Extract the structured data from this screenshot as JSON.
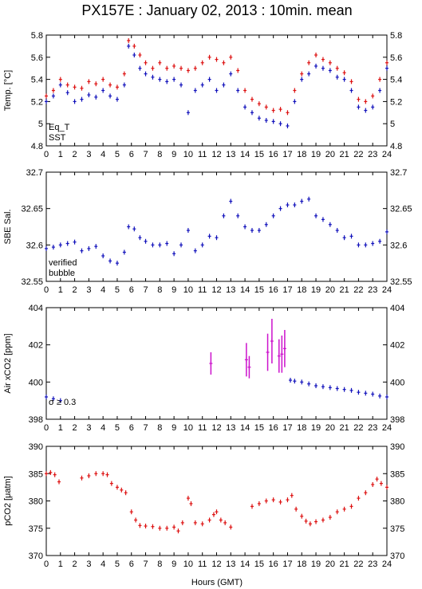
{
  "title": "PX157E : January 02, 2013 : 10min. mean",
  "xlabel": "Hours (GMT)",
  "x_ticks": [
    "0",
    "1",
    "2",
    "3",
    "4",
    "5",
    "6",
    "7",
    "8",
    "9",
    "10",
    "11",
    "12",
    "13",
    "14",
    "15",
    "16",
    "17",
    "18",
    "19",
    "20",
    "21",
    "22",
    "23",
    "24"
  ],
  "colors": {
    "red": "#dd1111",
    "blue": "#1111bb",
    "magenta": "#cc11cc"
  },
  "chart_data": [
    {
      "type": "scatter",
      "ylabel": "Temp. [°C]",
      "ylim": [
        4.8,
        5.8
      ],
      "y_ticks": [
        "4.8",
        "5",
        "5.2",
        "5.4",
        "5.6",
        "5.8"
      ],
      "legend": [
        "Eq_T",
        "SST"
      ],
      "series": [
        {
          "name": "Eq_T",
          "color": "#dd1111",
          "x": [
            0,
            0.5,
            1,
            1.5,
            2,
            2.5,
            3,
            3.5,
            4,
            4.5,
            5,
            5.5,
            5.8,
            6.2,
            6.6,
            7,
            7.5,
            8,
            8.5,
            9,
            9.5,
            10,
            10.5,
            11,
            11.5,
            12,
            12.5,
            13,
            13.5,
            14,
            14.5,
            15,
            15.5,
            16,
            16.5,
            17,
            17.5,
            18,
            18.5,
            19,
            19.5,
            20,
            20.5,
            21,
            21.5,
            22,
            22.5,
            23,
            23.5,
            24
          ],
          "y": [
            5.25,
            5.3,
            5.4,
            5.35,
            5.33,
            5.32,
            5.38,
            5.36,
            5.4,
            5.35,
            5.33,
            5.45,
            5.75,
            5.7,
            5.62,
            5.55,
            5.5,
            5.55,
            5.5,
            5.52,
            5.5,
            5.48,
            5.5,
            5.55,
            5.6,
            5.58,
            5.55,
            5.6,
            5.48,
            5.3,
            5.22,
            5.18,
            5.15,
            5.12,
            5.13,
            5.1,
            5.3,
            5.45,
            5.55,
            5.62,
            5.58,
            5.55,
            5.5,
            5.46,
            5.38,
            5.22,
            5.2,
            5.25,
            5.4,
            5.55
          ]
        },
        {
          "name": "SST",
          "color": "#1111bb",
          "x": [
            0,
            0.5,
            1,
            1.5,
            2,
            2.5,
            3,
            3.5,
            4,
            4.5,
            5,
            5.5,
            5.8,
            6.2,
            6.6,
            7,
            7.5,
            8,
            8.5,
            9,
            9.5,
            10,
            10.5,
            11,
            11.5,
            12,
            12.5,
            13,
            13.5,
            14,
            14.5,
            15,
            15.5,
            16,
            16.5,
            17,
            17.5,
            18,
            18.5,
            19,
            19.5,
            20,
            20.5,
            21,
            21.5,
            22,
            22.5,
            23,
            23.5,
            24
          ],
          "y": [
            5.2,
            5.25,
            5.35,
            5.28,
            5.2,
            5.22,
            5.26,
            5.24,
            5.3,
            5.25,
            5.22,
            5.35,
            5.7,
            5.62,
            5.5,
            5.45,
            5.42,
            5.4,
            5.38,
            5.4,
            5.35,
            5.1,
            5.3,
            5.35,
            5.4,
            5.3,
            5.35,
            5.45,
            5.3,
            5.15,
            5.1,
            5.05,
            5.03,
            5.02,
            5.0,
            4.98,
            5.2,
            5.4,
            5.45,
            5.52,
            5.5,
            5.48,
            5.42,
            5.4,
            5.3,
            5.15,
            5.12,
            5.15,
            5.3,
            5.5
          ]
        }
      ]
    },
    {
      "type": "scatter",
      "ylabel": "SBE Sal.",
      "ylim": [
        32.55,
        32.7
      ],
      "y_ticks": [
        "32.55",
        "32.6",
        "32.65",
        "32.7"
      ],
      "legend": [
        "verified",
        "bubble"
      ],
      "series": [
        {
          "name": "verified",
          "color": "#1111bb",
          "x": [
            0,
            0.5,
            1,
            1.5,
            2,
            2.5,
            3,
            3.5,
            4,
            4.5,
            5,
            5.5,
            5.8,
            6.2,
            6.6,
            7,
            7.5,
            8,
            8.5,
            9,
            9.5,
            10,
            10.5,
            11,
            11.5,
            12,
            12.5,
            13,
            13.5,
            14,
            14.5,
            15,
            15.5,
            16,
            16.5,
            17,
            17.5,
            18,
            18.5,
            19,
            19.5,
            20,
            20.5,
            21,
            21.5,
            22,
            22.5,
            23,
            23.5,
            24
          ],
          "y": [
            32.595,
            32.597,
            32.6,
            32.602,
            32.604,
            32.592,
            32.595,
            32.598,
            32.585,
            32.578,
            32.575,
            32.59,
            32.625,
            32.622,
            32.61,
            32.605,
            32.6,
            32.6,
            32.602,
            32.588,
            32.6,
            32.62,
            32.592,
            32.6,
            32.612,
            32.61,
            32.64,
            32.66,
            32.64,
            32.625,
            32.62,
            32.62,
            32.628,
            32.64,
            32.65,
            32.655,
            32.655,
            32.66,
            32.663,
            32.64,
            32.635,
            32.628,
            32.62,
            32.61,
            32.612,
            32.6,
            32.6,
            32.602,
            32.605,
            32.618
          ]
        }
      ]
    },
    {
      "type": "scatter",
      "ylabel": "Air xCO2 [ppm]",
      "ylim": [
        398,
        404
      ],
      "y_ticks": [
        "398",
        "400",
        "402",
        "404"
      ],
      "annotation": "σ ≥ 0.3",
      "series": [
        {
          "name": "",
          "color": "#1111bb",
          "x": [
            0,
            0.5,
            1,
            17.2,
            17.5,
            18,
            18.5,
            19,
            19.5,
            20,
            20.5,
            21,
            21.5,
            22,
            22.5,
            23,
            23.5,
            24
          ],
          "y": [
            399.2,
            399.1,
            399.0,
            400.1,
            400.05,
            400.0,
            399.9,
            399.8,
            399.75,
            399.7,
            399.65,
            399.6,
            399.55,
            399.45,
            399.4,
            399.35,
            399.25,
            399.2
          ]
        },
        {
          "name": "",
          "color": "#cc11cc",
          "x": [
            11.6,
            14.1,
            14.3,
            15.6,
            15.9,
            16.4,
            16.6,
            16.8
          ],
          "y": [
            401.0,
            401.2,
            400.8,
            401.6,
            402.2,
            401.4,
            401.5,
            401.8
          ],
          "err": [
            0.6,
            0.9,
            0.6,
            1.0,
            1.2,
            0.9,
            1.0,
            1.0
          ]
        }
      ]
    },
    {
      "type": "scatter",
      "ylabel": "pCO2 [μatm]",
      "ylim": [
        370,
        390
      ],
      "y_ticks": [
        "370",
        "375",
        "380",
        "385",
        "390"
      ],
      "series": [
        {
          "name": "",
          "color": "#dd1111",
          "x": [
            0,
            0.3,
            0.6,
            0.9,
            2.5,
            3,
            3.5,
            4,
            4.3,
            4.6,
            5,
            5.3,
            5.6,
            6,
            6.3,
            6.6,
            7,
            7.5,
            8,
            8.5,
            9,
            9.3,
            9.6,
            10,
            10.2,
            10.5,
            11,
            11.5,
            11.8,
            12,
            12.3,
            12.6,
            13,
            14.5,
            15,
            15.5,
            16,
            16.5,
            17,
            17.3,
            17.6,
            18,
            18.3,
            18.6,
            19,
            19.5,
            20,
            20.5,
            21,
            21.5,
            22,
            22.5,
            23,
            23.3,
            23.6,
            24
          ],
          "y": [
            385,
            385.2,
            384.8,
            383.5,
            384.2,
            384.6,
            385,
            385,
            384.8,
            383.2,
            382.5,
            382,
            381.5,
            378,
            376.5,
            375.5,
            375.4,
            375.3,
            375,
            375,
            375.2,
            374.5,
            376,
            380.5,
            379.5,
            376,
            375.8,
            376.5,
            377.5,
            378,
            376.5,
            376,
            375.2,
            379,
            379.5,
            380,
            380.2,
            379.8,
            380.2,
            381,
            378.5,
            377.2,
            376.3,
            375.8,
            376.2,
            376.5,
            377,
            378,
            378.5,
            379,
            380.5,
            381.5,
            383,
            384,
            383.2,
            382.5
          ]
        }
      ]
    }
  ]
}
